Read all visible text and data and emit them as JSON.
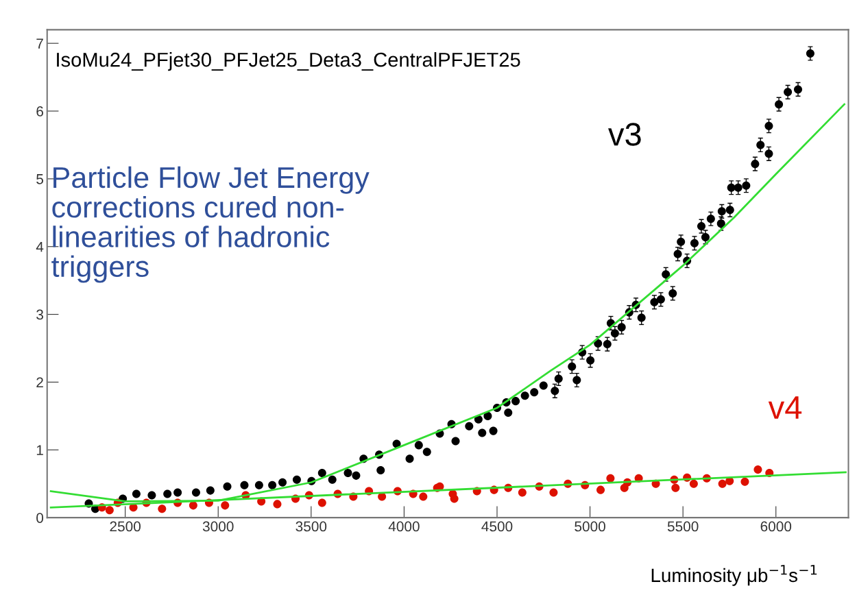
{
  "chart_data": {
    "type": "scatter",
    "title": "IsoMu24_PFjet30_PFJet25_Deta3_CentralPFJET25",
    "xlabel": "Luminosity μb$^{−1}$s$^{−1}$",
    "annotations": [
      "Particle Flow Jet Energy\ncorrections cured non-\nlinearities of hadronic\ntriggers"
    ],
    "xlim": [
      2080,
      6390
    ],
    "xticks": [
      2500,
      3000,
      3500,
      4000,
      4500,
      5000,
      5500,
      6000
    ],
    "ylim": [
      0,
      7.2
    ],
    "yticks": [
      0,
      1,
      2,
      3,
      4,
      5,
      6,
      7
    ],
    "grid": false,
    "legend": false,
    "series": [
      {
        "name": "v3",
        "color": "#000000",
        "marker": "circle",
        "x": [
          2304,
          2339,
          2487,
          2560,
          2643,
          2727,
          2782,
          2881,
          2958,
          3049,
          3141,
          3220,
          3291,
          3346,
          3423,
          3502,
          3559,
          3614,
          3698,
          3742,
          3782,
          3866,
          3874,
          3960,
          4030,
          4079,
          4123,
          4192,
          4255,
          4277,
          4350,
          4400,
          4420,
          4450,
          4480,
          4500,
          4550,
          4560,
          4600,
          4650,
          4700,
          4750,
          4811,
          4831,
          4903,
          4929,
          4958,
          5002,
          5043,
          5093,
          5112,
          5134,
          5170,
          5211,
          5247,
          5277,
          5346,
          5381,
          5408,
          5445,
          5472,
          5489,
          5522,
          5562,
          5599,
          5621,
          5650,
          5705,
          5709,
          5753,
          5760,
          5797,
          5840,
          5888,
          5917,
          5962,
          5962,
          6016,
          6064,
          6119,
          6185
        ],
        "values": [
          0.21,
          0.13,
          0.28,
          0.35,
          0.33,
          0.35,
          0.37,
          0.37,
          0.4,
          0.46,
          0.48,
          0.48,
          0.48,
          0.52,
          0.56,
          0.54,
          0.66,
          0.56,
          0.66,
          0.62,
          0.87,
          0.93,
          0.7,
          1.09,
          0.87,
          1.07,
          0.97,
          1.24,
          1.38,
          1.13,
          1.35,
          1.45,
          1.25,
          1.5,
          1.28,
          1.62,
          1.7,
          1.55,
          1.72,
          1.8,
          1.85,
          1.95,
          1.87,
          2.05,
          2.23,
          2.03,
          2.44,
          2.32,
          2.57,
          2.56,
          2.87,
          2.72,
          2.81,
          3.03,
          3.14,
          2.95,
          3.18,
          3.22,
          3.59,
          3.31,
          3.89,
          4.07,
          3.79,
          4.05,
          4.3,
          4.14,
          4.41,
          4.34,
          4.52,
          4.54,
          4.87,
          4.87,
          4.9,
          5.22,
          5.5,
          5.37,
          5.78,
          6.1,
          6.28,
          6.32,
          6.85
        ],
        "errors": [
          null,
          null,
          null,
          null,
          null,
          null,
          null,
          null,
          null,
          null,
          null,
          null,
          null,
          null,
          null,
          null,
          null,
          null,
          null,
          null,
          null,
          null,
          null,
          null,
          null,
          null,
          null,
          null,
          null,
          null,
          null,
          null,
          null,
          null,
          null,
          null,
          null,
          null,
          null,
          null,
          null,
          null,
          0.1,
          0.1,
          0.1,
          0.1,
          0.1,
          0.1,
          0.1,
          0.1,
          0.1,
          0.1,
          0.1,
          0.1,
          0.1,
          0.1,
          0.1,
          0.1,
          0.1,
          0.1,
          0.1,
          0.1,
          0.1,
          0.1,
          0.1,
          0.1,
          0.1,
          0.1,
          0.1,
          0.1,
          0.1,
          0.1,
          0.1,
          0.1,
          0.1,
          0.1,
          0.1,
          0.1,
          0.1,
          0.1,
          0.1
        ]
      },
      {
        "name": "v4",
        "color": "#dd1100",
        "marker": "circle",
        "x": [
          2375,
          2416,
          2460,
          2544,
          2614,
          2698,
          2782,
          2866,
          2951,
          3037,
          3148,
          3232,
          3318,
          3416,
          3489,
          3559,
          3643,
          3727,
          3811,
          3881,
          3965,
          4049,
          4103,
          4178,
          4192,
          4262,
          4270,
          4392,
          4484,
          4560,
          4636,
          4727,
          4804,
          4881,
          4973,
          5057,
          5110,
          5185,
          5201,
          5262,
          5354,
          5453,
          5460,
          5522,
          5558,
          5628,
          5712,
          5751,
          5833,
          5903,
          5965
        ],
        "values": [
          0.15,
          0.11,
          0.22,
          0.15,
          0.22,
          0.13,
          0.22,
          0.18,
          0.22,
          0.18,
          0.33,
          0.24,
          0.2,
          0.28,
          0.33,
          0.22,
          0.35,
          0.31,
          0.39,
          0.31,
          0.39,
          0.35,
          0.31,
          0.44,
          0.46,
          0.35,
          0.28,
          0.39,
          0.41,
          0.44,
          0.37,
          0.46,
          0.37,
          0.5,
          0.48,
          0.41,
          0.58,
          0.44,
          0.52,
          0.58,
          0.5,
          0.56,
          0.44,
          0.59,
          0.5,
          0.58,
          0.5,
          0.54,
          0.53,
          0.71,
          0.66
        ]
      },
      {
        "type": "line",
        "color": "#33dd33",
        "x": [
          2100,
          2500,
          3000,
          3500,
          4000,
          4500,
          4789,
          5000,
          5500,
          5775,
          6000,
          6368
        ],
        "values": [
          0.39,
          0.24,
          0.25,
          0.52,
          1.07,
          1.62,
          2.17,
          2.55,
          3.72,
          4.43,
          5.07,
          6.1
        ]
      },
      {
        "type": "line",
        "color": "#33dd33",
        "x": [
          2100,
          6375
        ],
        "values": [
          0.15,
          0.67
        ]
      }
    ]
  }
}
